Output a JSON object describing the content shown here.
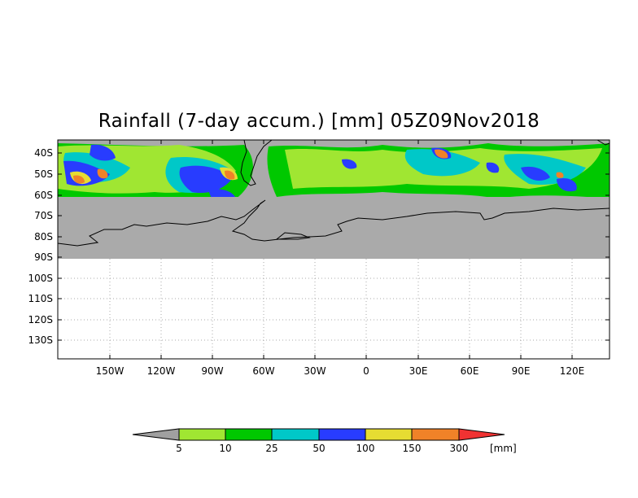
{
  "title": "Rainfall (7-day accum.) [mm] 05Z09Nov2018",
  "map": {
    "lat_labels": [
      "40S",
      "50S",
      "60S",
      "70S",
      "80S",
      "90S",
      "100S",
      "110S",
      "120S",
      "130S"
    ],
    "lon_labels": [
      "150W",
      "120W",
      "90W",
      "60W",
      "30W",
      "0",
      "30E",
      "60E",
      "90E",
      "120E"
    ],
    "colors": {
      "no_data": "#ffffff",
      "below_threshold": "#aaaaaa",
      "coastline": "#000000",
      "grid": "#aaaaaa"
    }
  },
  "legend": {
    "thresholds": [
      "5",
      "10",
      "25",
      "50",
      "100",
      "150",
      "300"
    ],
    "unit": "[mm]",
    "colors": [
      "#a0a0a0",
      "#a0e632",
      "#00c800",
      "#00c8c8",
      "#283cff",
      "#e6dc32",
      "#f08228",
      "#f03232"
    ]
  }
}
